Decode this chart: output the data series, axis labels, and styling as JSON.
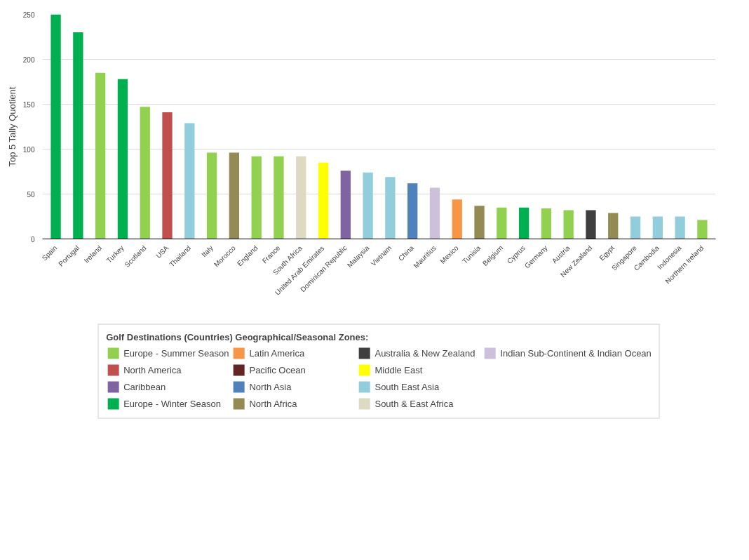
{
  "chart_data": {
    "type": "bar",
    "ylabel": "Top 5 Tally Quotient",
    "legend_title": "Golf Destinations (Countries) Geographical/Seasonal Zones:",
    "legend": "bottom",
    "grid": "y",
    "categories": [
      "Spain",
      "Portugal",
      "Ireland",
      "Turkey",
      "Scotland",
      "USA",
      "Thailand",
      "Italy",
      "Morocco",
      "England",
      "France",
      "South Africa",
      "United Arab Emirates",
      "Dominican Republic",
      "Malaysia",
      "Vietnam",
      "China",
      "Mauritius",
      "Mexico",
      "Tunisia",
      "Belgium",
      "Cyprus",
      "Germany",
      "Austria",
      "New Zealand",
      "Egypt",
      "Singapore",
      "Cambodia",
      "Indonesia",
      "Northern Ireland"
    ],
    "ylim": [
      0,
      250
    ],
    "yticks": [
      0,
      50,
      100,
      150,
      200,
      250
    ],
    "series": [
      {
        "name": "Europe - Summer Season",
        "color": "#92d050",
        "values": [
          null,
          null,
          185,
          null,
          147,
          null,
          null,
          96,
          null,
          92,
          92,
          null,
          null,
          null,
          null,
          null,
          null,
          null,
          null,
          null,
          35,
          null,
          34,
          32,
          null,
          null,
          null,
          null,
          null,
          21
        ]
      },
      {
        "name": "North America",
        "color": "#c0504d",
        "values": [
          null,
          null,
          null,
          null,
          null,
          141,
          null,
          null,
          null,
          null,
          null,
          null,
          null,
          null,
          null,
          null,
          null,
          null,
          null,
          null,
          null,
          null,
          null,
          null,
          null,
          null,
          null,
          null,
          null,
          null
        ]
      },
      {
        "name": "Caribbean",
        "color": "#8064a2",
        "values": [
          null,
          null,
          null,
          null,
          null,
          null,
          null,
          null,
          null,
          null,
          null,
          null,
          null,
          76,
          null,
          null,
          null,
          null,
          null,
          null,
          null,
          null,
          null,
          null,
          null,
          null,
          null,
          null,
          null,
          null
        ]
      },
      {
        "name": "Europe - Winter Season",
        "color": "#00b050",
        "values": [
          250,
          230,
          null,
          178,
          null,
          null,
          null,
          null,
          null,
          null,
          null,
          null,
          null,
          null,
          null,
          null,
          null,
          null,
          null,
          null,
          null,
          35,
          null,
          null,
          null,
          null,
          null,
          null,
          null,
          null
        ]
      },
      {
        "name": "Latin America",
        "color": "#f79646",
        "values": [
          null,
          null,
          null,
          null,
          null,
          null,
          null,
          null,
          null,
          null,
          null,
          null,
          null,
          null,
          null,
          null,
          null,
          null,
          44,
          null,
          null,
          null,
          null,
          null,
          null,
          null,
          null,
          null,
          null,
          null
        ]
      },
      {
        "name": "Pacific Ocean",
        "color": "#632523",
        "values": [
          null,
          null,
          null,
          null,
          null,
          null,
          null,
          null,
          null,
          null,
          null,
          null,
          null,
          null,
          null,
          null,
          null,
          null,
          null,
          null,
          null,
          null,
          null,
          null,
          null,
          null,
          null,
          null,
          null,
          null
        ]
      },
      {
        "name": "North Asia",
        "color": "#4f81bd",
        "values": [
          null,
          null,
          null,
          null,
          null,
          null,
          null,
          null,
          null,
          null,
          null,
          null,
          null,
          null,
          null,
          null,
          62,
          null,
          null,
          null,
          null,
          null,
          null,
          null,
          null,
          null,
          null,
          null,
          null,
          null
        ]
      },
      {
        "name": "North Africa",
        "color": "#948a54",
        "values": [
          null,
          null,
          null,
          null,
          null,
          null,
          null,
          null,
          96,
          null,
          null,
          null,
          null,
          null,
          null,
          null,
          null,
          null,
          null,
          37,
          null,
          null,
          null,
          null,
          null,
          29,
          null,
          null,
          null,
          null
        ]
      },
      {
        "name": "Australia & New Zealand",
        "color": "#3f3f3f",
        "values": [
          null,
          null,
          null,
          null,
          null,
          null,
          null,
          null,
          null,
          null,
          null,
          null,
          null,
          null,
          null,
          null,
          null,
          null,
          null,
          null,
          null,
          null,
          null,
          null,
          32,
          null,
          null,
          null,
          null,
          null
        ]
      },
      {
        "name": "Middle East",
        "color": "#ffff00",
        "values": [
          null,
          null,
          null,
          null,
          null,
          null,
          null,
          null,
          null,
          null,
          null,
          null,
          85,
          null,
          null,
          null,
          null,
          null,
          null,
          null,
          null,
          null,
          null,
          null,
          null,
          null,
          null,
          null,
          null,
          null
        ]
      },
      {
        "name": "South East Asia",
        "color": "#92cddc",
        "values": [
          null,
          null,
          null,
          null,
          null,
          null,
          129,
          null,
          null,
          null,
          null,
          null,
          null,
          null,
          74,
          69,
          null,
          null,
          null,
          null,
          null,
          null,
          null,
          null,
          null,
          null,
          25,
          25,
          25,
          null
        ]
      },
      {
        "name": "South & East Africa",
        "color": "#ddd9c3",
        "values": [
          null,
          null,
          null,
          null,
          null,
          null,
          null,
          null,
          null,
          null,
          null,
          92,
          null,
          null,
          null,
          null,
          null,
          null,
          null,
          null,
          null,
          null,
          null,
          null,
          null,
          null,
          null,
          null,
          null,
          null
        ]
      },
      {
        "name": "Indian Sub-Continent & Indian Ocean",
        "color": "#ccc0da",
        "values": [
          null,
          null,
          null,
          null,
          null,
          null,
          null,
          null,
          null,
          null,
          null,
          null,
          null,
          null,
          null,
          null,
          null,
          57,
          null,
          null,
          null,
          null,
          null,
          null,
          null,
          null,
          null,
          null,
          null,
          null
        ]
      }
    ]
  }
}
